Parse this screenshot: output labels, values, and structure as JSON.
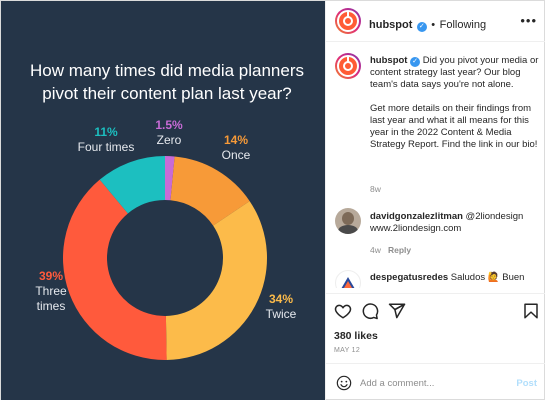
{
  "chart_data": {
    "type": "pie",
    "title": "How many times did media planners pivot their content plan last year?",
    "slices": [
      {
        "label": "Zero",
        "value": 1.5,
        "display": "1.5%",
        "color": "#c86bd6"
      },
      {
        "label": "Once",
        "value": 14,
        "display": "14%",
        "color": "#f79a38"
      },
      {
        "label": "Twice",
        "value": 34,
        "display": "34%",
        "color": "#fcbb4a"
      },
      {
        "label": "Three times",
        "value": 39,
        "display": "39%",
        "color": "#ff5a3c"
      },
      {
        "label": "Four times",
        "value": 11,
        "display": "11%",
        "color": "#1cbfc0"
      }
    ]
  },
  "header": {
    "username": "hubspot",
    "dot": "•",
    "follow_label": "Following",
    "more_icon": "ellipsis-icon"
  },
  "caption": {
    "username": "hubspot",
    "text1": "Did you pivot your media or content strategy last year? Our blog team's data says you're not alone.",
    "text2": "Get more details on their findings from last year and what it all means for this year in the 2022 Content & Media Strategy Report. Find the link in our bio!",
    "time": "8w"
  },
  "comments": [
    {
      "username": "davidgonzalezlitman",
      "text": "@2liondesign www.2liondesign.com",
      "time": "4w",
      "reply": "Reply"
    },
    {
      "username": "despegatusredes",
      "text": "Saludos 🙋 Buen"
    }
  ],
  "stats": {
    "likes": "380 likes",
    "date": "MAY 12"
  },
  "add_comment": {
    "placeholder": "Add a comment...",
    "post_label": "Post"
  },
  "colors": {
    "bg": "#253548",
    "brand": "#ff5c35",
    "verified": "#3897f0"
  }
}
